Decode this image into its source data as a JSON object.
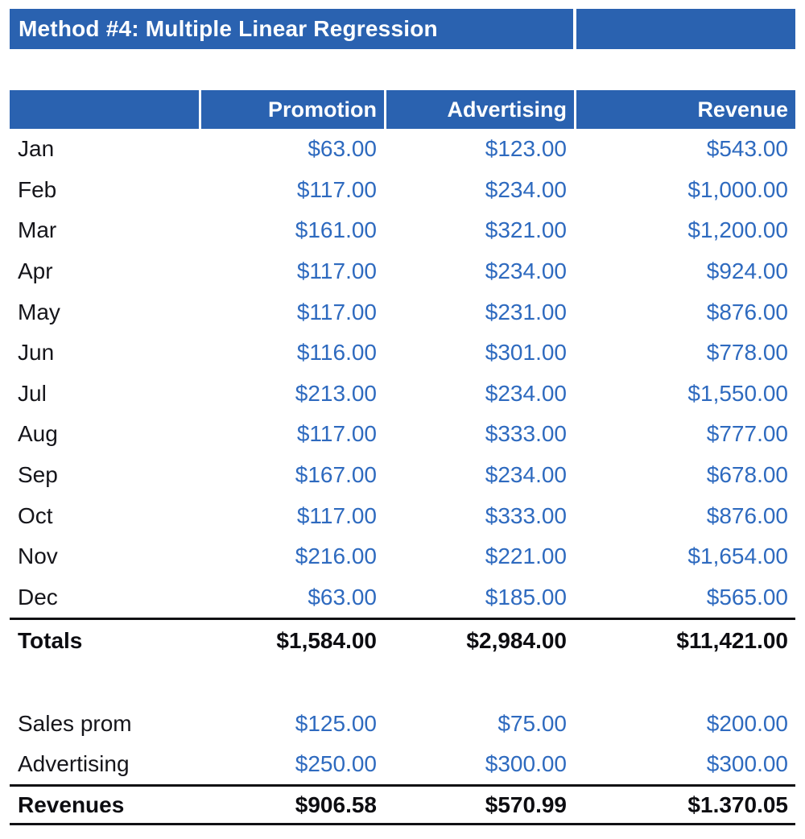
{
  "title": "Method #4: Multiple Linear Regression",
  "columns": {
    "label": "",
    "promotion": "Promotion",
    "advertising": "Advertising",
    "revenue": "Revenue"
  },
  "months": [
    {
      "label": "Jan",
      "promotion": "$63.00",
      "advertising": "$123.00",
      "revenue": "$543.00"
    },
    {
      "label": "Feb",
      "promotion": "$117.00",
      "advertising": "$234.00",
      "revenue": "$1,000.00"
    },
    {
      "label": "Mar",
      "promotion": "$161.00",
      "advertising": "$321.00",
      "revenue": "$1,200.00"
    },
    {
      "label": "Apr",
      "promotion": "$117.00",
      "advertising": "$234.00",
      "revenue": "$924.00"
    },
    {
      "label": "May",
      "promotion": "$117.00",
      "advertising": "$231.00",
      "revenue": "$876.00"
    },
    {
      "label": "Jun",
      "promotion": "$116.00",
      "advertising": "$301.00",
      "revenue": "$778.00"
    },
    {
      "label": "Jul",
      "promotion": "$213.00",
      "advertising": "$234.00",
      "revenue": "$1,550.00"
    },
    {
      "label": "Aug",
      "promotion": "$117.00",
      "advertising": "$333.00",
      "revenue": "$777.00"
    },
    {
      "label": "Sep",
      "promotion": "$167.00",
      "advertising": "$234.00",
      "revenue": "$678.00"
    },
    {
      "label": "Oct",
      "promotion": "$117.00",
      "advertising": "$333.00",
      "revenue": "$876.00"
    },
    {
      "label": "Nov",
      "promotion": "$216.00",
      "advertising": "$221.00",
      "revenue": "$1,654.00"
    },
    {
      "label": "Dec",
      "promotion": "$63.00",
      "advertising": "$185.00",
      "revenue": "$565.00"
    }
  ],
  "totals": {
    "label": "Totals",
    "promotion": "$1,584.00",
    "advertising": "$2,984.00",
    "revenue": "$11,421.00"
  },
  "inputs": [
    {
      "label": "Sales prom",
      "promotion": "$125.00",
      "advertising": "$75.00",
      "revenue": "$200.00"
    },
    {
      "label": "Advertising",
      "promotion": "$250.00",
      "advertising": "$300.00",
      "revenue": "$300.00"
    }
  ],
  "revenues": {
    "label": "Revenues",
    "promotion": "$906.58",
    "advertising": "$570.99",
    "revenue": "$1.370.05"
  },
  "colors": {
    "header_blue": "#2A62B0",
    "value_blue": "#2E6ABF",
    "text_dark": "#15151A",
    "rule_black": "#101013",
    "background": "#FFFFFF"
  }
}
